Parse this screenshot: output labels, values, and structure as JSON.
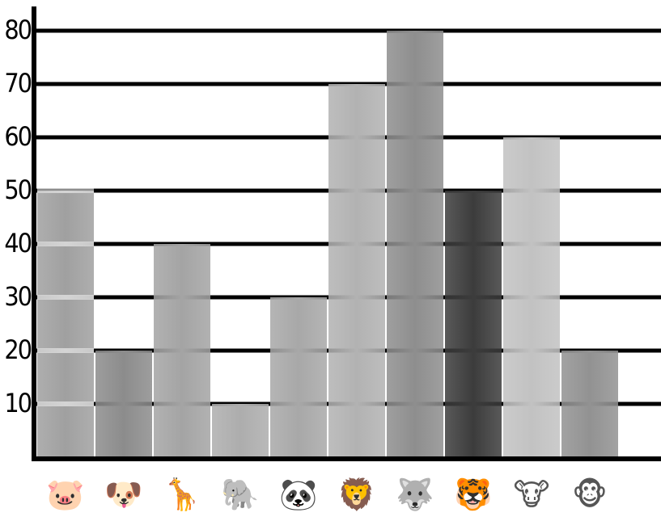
{
  "chart_data": {
    "type": "bar",
    "title": "",
    "xlabel": "",
    "ylabel": "",
    "ylim": [
      0,
      85
    ],
    "yticks": [
      10,
      20,
      30,
      40,
      50,
      60,
      70,
      80
    ],
    "grid": true,
    "categories": [
      "pig",
      "dog",
      "giraffe",
      "elephant",
      "panda",
      "lion",
      "wolf",
      "tiger",
      "cow",
      "monkey"
    ],
    "category_icons": [
      "pig-face-icon",
      "dog-face-icon",
      "giraffe-face-icon",
      "elephant-face-icon",
      "panda-face-icon",
      "lion-face-icon",
      "wolf-face-icon",
      "tiger-face-icon",
      "cow-face-icon",
      "monkey-face-icon"
    ],
    "category_glyphs": [
      "🐷",
      "🐶",
      "🦒",
      "🐘",
      "🐼",
      "🦁",
      "🐺",
      "🐯",
      "🐮",
      "🐵"
    ],
    "values": [
      50,
      20,
      40,
      10,
      30,
      70,
      80,
      50,
      60,
      20
    ],
    "bar_colors": [
      "#a0a0a0",
      "#8c8c8c",
      "#a4a4a4",
      "#adadad",
      "#a8a8a8",
      "#b2b2b2",
      "#8e8e8e",
      "#3c3c3c",
      "#c2c2c2",
      "#929292"
    ]
  }
}
